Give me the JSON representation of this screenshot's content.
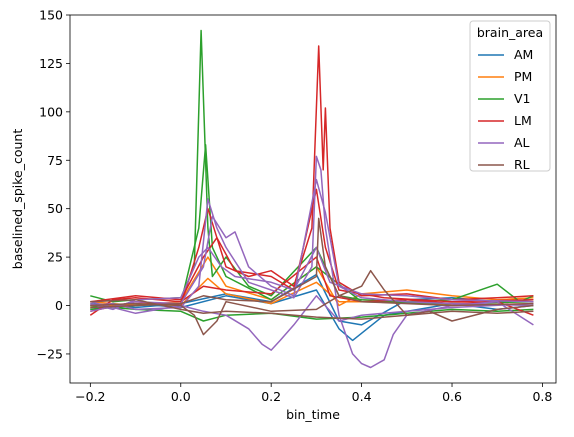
{
  "chart_data": {
    "type": "line",
    "title": "",
    "xlabel": "bin_time",
    "ylabel": "baselined_spike_count",
    "xlim": [
      -0.245,
      0.83
    ],
    "ylim": [
      -40,
      150
    ],
    "xticks": [
      -0.2,
      0.0,
      0.2,
      0.4,
      0.6,
      0.8
    ],
    "xtick_labels": [
      "−0.2",
      "0.0",
      "0.2",
      "0.4",
      "0.6",
      "0.8"
    ],
    "yticks": [
      -25,
      0,
      25,
      50,
      75,
      100,
      125,
      150
    ],
    "ytick_labels": [
      "−25",
      "0",
      "25",
      "50",
      "75",
      "100",
      "125",
      "150"
    ],
    "grid": false,
    "legend": {
      "title": "brain_area",
      "placement": "top-right"
    },
    "series": [
      {
        "name": "AM",
        "color": "#1f77b4",
        "traces": [
          [
            [
              -0.2,
              1
            ],
            [
              -0.1,
              -1
            ],
            [
              0,
              1
            ],
            [
              0.1,
              6
            ],
            [
              0.2,
              2
            ],
            [
              0.3,
              16
            ],
            [
              0.35,
              -8
            ],
            [
              0.4,
              -10
            ],
            [
              0.5,
              3
            ],
            [
              0.6,
              4
            ],
            [
              0.7,
              2
            ],
            [
              0.78,
              3
            ]
          ],
          [
            [
              -0.2,
              -2
            ],
            [
              -0.1,
              1
            ],
            [
              0,
              -1
            ],
            [
              0.1,
              5
            ],
            [
              0.2,
              1
            ],
            [
              0.3,
              8
            ],
            [
              0.35,
              -12
            ],
            [
              0.38,
              -18
            ],
            [
              0.45,
              -5
            ],
            [
              0.6,
              1
            ],
            [
              0.7,
              -2
            ],
            [
              0.78,
              0
            ]
          ]
        ]
      },
      {
        "name": "PM",
        "color": "#ff7f0e",
        "traces": [
          [
            [
              -0.2,
              2
            ],
            [
              -0.1,
              0
            ],
            [
              0,
              2
            ],
            [
              0.06,
              25
            ],
            [
              0.1,
              10
            ],
            [
              0.2,
              3
            ],
            [
              0.3,
              20
            ],
            [
              0.35,
              0
            ],
            [
              0.4,
              6
            ],
            [
              0.5,
              8
            ],
            [
              0.6,
              5
            ],
            [
              0.7,
              3
            ],
            [
              0.78,
              4
            ]
          ],
          [
            [
              -0.2,
              -1
            ],
            [
              -0.1,
              1
            ],
            [
              0,
              0
            ],
            [
              0.06,
              14
            ],
            [
              0.1,
              6
            ],
            [
              0.2,
              1
            ],
            [
              0.3,
              12
            ],
            [
              0.35,
              2
            ],
            [
              0.5,
              2
            ],
            [
              0.6,
              0
            ],
            [
              0.78,
              1
            ]
          ]
        ]
      },
      {
        "name": "V1",
        "color": "#2ca02c",
        "traces": [
          [
            [
              -0.2,
              5
            ],
            [
              -0.15,
              2
            ],
            [
              -0.1,
              3
            ],
            [
              0,
              4
            ],
            [
              0.03,
              20
            ],
            [
              0.045,
              142
            ],
            [
              0.06,
              40
            ],
            [
              0.07,
              15
            ],
            [
              0.1,
              25
            ],
            [
              0.15,
              10
            ],
            [
              0.2,
              5
            ],
            [
              0.3,
              30
            ],
            [
              0.35,
              5
            ],
            [
              0.4,
              3
            ],
            [
              0.5,
              2
            ],
            [
              0.6,
              3
            ],
            [
              0.7,
              11
            ],
            [
              0.75,
              2
            ],
            [
              0.78,
              5
            ]
          ],
          [
            [
              -0.2,
              -2
            ],
            [
              -0.1,
              0
            ],
            [
              0,
              1
            ],
            [
              0.04,
              40
            ],
            [
              0.055,
              83
            ],
            [
              0.07,
              30
            ],
            [
              0.1,
              15
            ],
            [
              0.2,
              3
            ],
            [
              0.3,
              20
            ],
            [
              0.4,
              2
            ],
            [
              0.6,
              1
            ],
            [
              0.78,
              2
            ]
          ],
          [
            [
              -0.2,
              0
            ],
            [
              -0.1,
              -2
            ],
            [
              0,
              -3
            ],
            [
              0.05,
              -8
            ],
            [
              0.1,
              -5
            ],
            [
              0.2,
              -4
            ],
            [
              0.3,
              -7
            ],
            [
              0.4,
              -6
            ],
            [
              0.5,
              -4
            ],
            [
              0.6,
              -2
            ],
            [
              0.7,
              -3
            ],
            [
              0.78,
              -2
            ]
          ]
        ]
      },
      {
        "name": "LM",
        "color": "#d62728",
        "traces": [
          [
            [
              -0.2,
              -3
            ],
            [
              -0.1,
              2
            ],
            [
              0,
              0
            ],
            [
              0.04,
              30
            ],
            [
              0.06,
              50
            ],
            [
              0.08,
              35
            ],
            [
              0.1,
              20
            ],
            [
              0.15,
              15
            ],
            [
              0.2,
              18
            ],
            [
              0.25,
              10
            ],
            [
              0.29,
              40
            ],
            [
              0.305,
              134
            ],
            [
              0.315,
              70
            ],
            [
              0.32,
              102
            ],
            [
              0.33,
              40
            ],
            [
              0.35,
              12
            ],
            [
              0.4,
              5
            ],
            [
              0.5,
              6
            ],
            [
              0.6,
              3
            ],
            [
              0.7,
              4
            ],
            [
              0.78,
              5
            ]
          ],
          [
            [
              -0.2,
              2
            ],
            [
              -0.1,
              5
            ],
            [
              0,
              3
            ],
            [
              0.05,
              25
            ],
            [
              0.08,
              35
            ],
            [
              0.12,
              18
            ],
            [
              0.2,
              15
            ],
            [
              0.25,
              8
            ],
            [
              0.3,
              60
            ],
            [
              0.32,
              30
            ],
            [
              0.35,
              8
            ],
            [
              0.45,
              4
            ],
            [
              0.6,
              2
            ],
            [
              0.78,
              3
            ]
          ],
          [
            [
              -0.2,
              -5
            ],
            [
              -0.15,
              3
            ],
            [
              -0.1,
              4
            ],
            [
              0,
              2
            ],
            [
              0.05,
              10
            ],
            [
              0.1,
              8
            ],
            [
              0.2,
              6
            ],
            [
              0.3,
              25
            ],
            [
              0.33,
              5
            ],
            [
              0.4,
              2
            ],
            [
              0.5,
              3
            ],
            [
              0.6,
              1
            ],
            [
              0.7,
              2
            ],
            [
              0.78,
              -5
            ]
          ]
        ]
      },
      {
        "name": "AL",
        "color": "#9467bd",
        "traces": [
          [
            [
              -0.2,
              0
            ],
            [
              -0.15,
              1
            ],
            [
              -0.1,
              -2
            ],
            [
              0,
              -1
            ],
            [
              0.04,
              10
            ],
            [
              0.06,
              55
            ],
            [
              0.08,
              40
            ],
            [
              0.1,
              30
            ],
            [
              0.15,
              12
            ],
            [
              0.2,
              8
            ],
            [
              0.25,
              4
            ],
            [
              0.29,
              20
            ],
            [
              0.3,
              77
            ],
            [
              0.31,
              70
            ],
            [
              0.32,
              40
            ],
            [
              0.35,
              -5
            ],
            [
              0.38,
              -25
            ],
            [
              0.4,
              -30
            ],
            [
              0.42,
              -32
            ],
            [
              0.45,
              -28
            ],
            [
              0.47,
              -15
            ],
            [
              0.5,
              -5
            ],
            [
              0.6,
              0
            ],
            [
              0.7,
              2
            ],
            [
              0.78,
              -10
            ]
          ],
          [
            [
              -0.2,
              -3
            ],
            [
              -0.1,
              2
            ],
            [
              0,
              1
            ],
            [
              0.05,
              20
            ],
            [
              0.07,
              46
            ],
            [
              0.1,
              35
            ],
            [
              0.12,
              38
            ],
            [
              0.15,
              20
            ],
            [
              0.2,
              10
            ],
            [
              0.25,
              5
            ],
            [
              0.3,
              65
            ],
            [
              0.32,
              48
            ],
            [
              0.35,
              10
            ],
            [
              0.4,
              4
            ],
            [
              0.5,
              2
            ],
            [
              0.6,
              1
            ],
            [
              0.78,
              0
            ]
          ],
          [
            [
              -0.2,
              2
            ],
            [
              -0.1,
              -4
            ],
            [
              0,
              0
            ],
            [
              0.05,
              -3
            ],
            [
              0.1,
              -5
            ],
            [
              0.15,
              -12
            ],
            [
              0.18,
              -20
            ],
            [
              0.2,
              -23
            ],
            [
              0.22,
              -18
            ],
            [
              0.25,
              -10
            ],
            [
              0.3,
              5
            ],
            [
              0.35,
              -8
            ],
            [
              0.4,
              -5
            ],
            [
              0.5,
              -3
            ],
            [
              0.6,
              -1
            ],
            [
              0.78,
              1
            ]
          ],
          [
            [
              -0.2,
              1
            ],
            [
              -0.15,
              -2
            ],
            [
              -0.1,
              3
            ],
            [
              0,
              4
            ],
            [
              0.04,
              25
            ],
            [
              0.06,
              30
            ],
            [
              0.09,
              20
            ],
            [
              0.12,
              15
            ],
            [
              0.2,
              12
            ],
            [
              0.25,
              8
            ],
            [
              0.3,
              30
            ],
            [
              0.33,
              12
            ],
            [
              0.4,
              6
            ],
            [
              0.5,
              5
            ],
            [
              0.6,
              3
            ],
            [
              0.78,
              2
            ]
          ]
        ]
      },
      {
        "name": "RL",
        "color": "#8c564b",
        "traces": [
          [
            [
              -0.2,
              0
            ],
            [
              -0.1,
              1
            ],
            [
              0,
              0
            ],
            [
              0.03,
              -5
            ],
            [
              0.05,
              -15
            ],
            [
              0.08,
              -8
            ],
            [
              0.1,
              2
            ],
            [
              0.2,
              -3
            ],
            [
              0.3,
              -2
            ],
            [
              0.35,
              5
            ],
            [
              0.4,
              10
            ],
            [
              0.42,
              18
            ],
            [
              0.45,
              8
            ],
            [
              0.5,
              -5
            ],
            [
              0.55,
              -3
            ],
            [
              0.6,
              -8
            ],
            [
              0.7,
              -2
            ],
            [
              0.78,
              0
            ]
          ],
          [
            [
              -0.2,
              -1
            ],
            [
              -0.1,
              0
            ],
            [
              0,
              1
            ],
            [
              0.05,
              5
            ],
            [
              0.1,
              3
            ],
            [
              0.2,
              2
            ],
            [
              0.3,
              15
            ],
            [
              0.305,
              45
            ],
            [
              0.32,
              20
            ],
            [
              0.35,
              5
            ],
            [
              0.4,
              2
            ],
            [
              0.5,
              1
            ],
            [
              0.6,
              0
            ],
            [
              0.78,
              1
            ]
          ],
          [
            [
              -0.2,
              2
            ],
            [
              -0.1,
              3
            ],
            [
              0,
              -2
            ],
            [
              0.05,
              -4
            ],
            [
              0.1,
              -3
            ],
            [
              0.2,
              -4
            ],
            [
              0.3,
              -6
            ],
            [
              0.4,
              -7
            ],
            [
              0.5,
              -5
            ],
            [
              0.6,
              -3
            ],
            [
              0.7,
              -4
            ],
            [
              0.78,
              -3
            ]
          ]
        ]
      }
    ]
  }
}
